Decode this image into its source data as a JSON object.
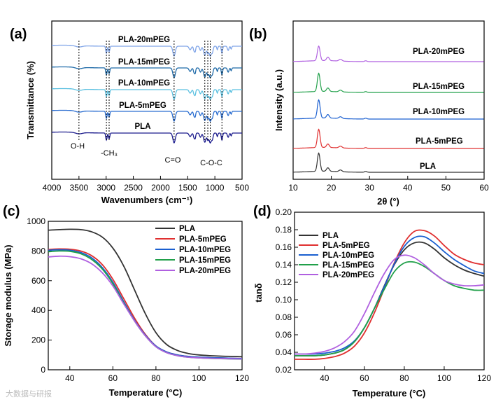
{
  "watermark": "大数据与研报",
  "chart_data": [
    {
      "panel": "(a)",
      "type": "line",
      "title": "",
      "xlabel": "Wavenumbers (cm⁻¹)",
      "ylabel": "Transmittance (%)",
      "xlim": [
        4000,
        500
      ],
      "xticks": [
        "4000",
        "3500",
        "3000",
        "2500",
        "2000",
        "1500",
        "1000",
        "500"
      ],
      "band_wavenumbers": [
        3500,
        2995,
        2945,
        1750,
        1185,
        1130,
        1085,
        870
      ],
      "annotations": [
        "O-H",
        "-CH₃",
        "C=O",
        "C-O-C"
      ],
      "series": [
        {
          "name": "PLA",
          "color": "#1a1a8c",
          "offset": 0
        },
        {
          "name": "PLA-5mPEG",
          "color": "#2a6dd0",
          "offset": 1
        },
        {
          "name": "PLA-10mPEG",
          "color": "#5bc0e0",
          "offset": 2
        },
        {
          "name": "PLA-15mPEG",
          "color": "#1e6aa8",
          "offset": 3
        },
        {
          "name": "PLA-20mPEG",
          "color": "#7fa4e8",
          "offset": 4
        }
      ]
    },
    {
      "panel": "(b)",
      "type": "line",
      "xlabel": "2θ (°)",
      "ylabel": "Intensity (a.u.)",
      "xlim": [
        10,
        60
      ],
      "xticks": [
        "10",
        "20",
        "30",
        "40",
        "50",
        "60"
      ],
      "peaks_2theta": [
        16.7,
        19.1,
        22.4
      ],
      "series": [
        {
          "name": "PLA",
          "color": "#333333",
          "peak_height": 1.0
        },
        {
          "name": "PLA-5mPEG",
          "color": "#e03030",
          "peak_height": 1.0
        },
        {
          "name": "PLA-10mPEG",
          "color": "#1a5fd0",
          "peak_height": 1.0
        },
        {
          "name": "PLA-15mPEG",
          "color": "#21a04a",
          "peak_height": 1.0
        },
        {
          "name": "PLA-20mPEG",
          "color": "#b060e0",
          "peak_height": 0.8
        }
      ]
    },
    {
      "panel": "(c)",
      "type": "line",
      "xlabel": "Temperature (°C)",
      "ylabel": "Storage modulus (MPa)",
      "xlim": [
        30,
        120
      ],
      "ylim": [
        0,
        1000
      ],
      "xticks": [
        "40",
        "60",
        "80",
        "100",
        "120"
      ],
      "yticks": [
        "0",
        "200",
        "400",
        "600",
        "800",
        "1000"
      ],
      "legend": [
        "PLA",
        "PLA-5mPEG",
        "PLA-10mPEG",
        "PLA-15mPEG",
        "PLA-20mPEG"
      ],
      "series": [
        {
          "name": "PLA",
          "color": "#333333",
          "x": [
            30,
            35,
            40,
            45,
            50,
            55,
            60,
            65,
            70,
            75,
            80,
            85,
            90,
            95,
            100,
            105,
            110,
            115,
            120
          ],
          "values": [
            940,
            944,
            946,
            944,
            930,
            895,
            820,
            700,
            540,
            380,
            250,
            170,
            130,
            110,
            100,
            95,
            92,
            90,
            88
          ]
        },
        {
          "name": "PLA-5mPEG",
          "color": "#e03030",
          "x": [
            30,
            35,
            40,
            45,
            50,
            55,
            60,
            65,
            70,
            75,
            80,
            85,
            90,
            95,
            100,
            105,
            110,
            115,
            120
          ],
          "values": [
            810,
            814,
            812,
            800,
            770,
            710,
            610,
            480,
            350,
            240,
            160,
            120,
            100,
            90,
            85,
            82,
            80,
            78,
            76
          ]
        },
        {
          "name": "PLA-10mPEG",
          "color": "#1a5fd0",
          "x": [
            30,
            35,
            40,
            45,
            50,
            55,
            60,
            65,
            70,
            75,
            80,
            85,
            90,
            95,
            100,
            105,
            110,
            115,
            120
          ],
          "values": [
            805,
            808,
            805,
            790,
            755,
            690,
            590,
            460,
            335,
            235,
            160,
            120,
            100,
            90,
            85,
            82,
            80,
            78,
            76
          ]
        },
        {
          "name": "PLA-15mPEG",
          "color": "#21a04a",
          "x": [
            30,
            35,
            40,
            45,
            50,
            55,
            60,
            65,
            70,
            75,
            80,
            85,
            90,
            95,
            100,
            105,
            110,
            115,
            120
          ],
          "values": [
            795,
            800,
            798,
            782,
            745,
            680,
            580,
            450,
            330,
            230,
            155,
            115,
            95,
            85,
            80,
            77,
            75,
            73,
            72
          ]
        },
        {
          "name": "PLA-20mPEG",
          "color": "#b060e0",
          "x": [
            30,
            35,
            40,
            45,
            50,
            55,
            60,
            65,
            70,
            75,
            80,
            85,
            90,
            95,
            100,
            105,
            110,
            115,
            120
          ],
          "values": [
            760,
            765,
            762,
            748,
            715,
            655,
            565,
            445,
            330,
            230,
            155,
            115,
            95,
            85,
            80,
            78,
            76,
            74,
            73
          ]
        }
      ]
    },
    {
      "panel": "(d)",
      "type": "line",
      "xlabel": "Temperature (°C)",
      "ylabel": "tanδ",
      "xlim": [
        25,
        120
      ],
      "ylim": [
        0.02,
        0.2
      ],
      "xticks": [
        "40",
        "60",
        "80",
        "100",
        "120"
      ],
      "yticks": [
        "0.02",
        "0.04",
        "0.06",
        "0.08",
        "0.10",
        "0.12",
        "0.14",
        "0.16",
        "0.18",
        "0.20"
      ],
      "legend": [
        "PLA",
        "PLA-5mPEG",
        "PLA-10mPEG",
        "PLA-15mPEG",
        "PLA-20mPEG"
      ],
      "series": [
        {
          "name": "PLA",
          "color": "#333333",
          "x": [
            25,
            30,
            35,
            40,
            45,
            50,
            55,
            60,
            65,
            70,
            75,
            80,
            85,
            90,
            95,
            100,
            105,
            110,
            115,
            120
          ],
          "values": [
            0.036,
            0.036,
            0.036,
            0.037,
            0.039,
            0.043,
            0.052,
            0.068,
            0.09,
            0.116,
            0.14,
            0.157,
            0.165,
            0.165,
            0.158,
            0.148,
            0.14,
            0.134,
            0.13,
            0.127
          ]
        },
        {
          "name": "PLA-5mPEG",
          "color": "#e03030",
          "x": [
            25,
            30,
            35,
            40,
            45,
            50,
            55,
            60,
            65,
            70,
            75,
            80,
            85,
            90,
            95,
            100,
            105,
            110,
            115,
            120
          ],
          "values": [
            0.032,
            0.032,
            0.032,
            0.033,
            0.035,
            0.039,
            0.047,
            0.062,
            0.085,
            0.113,
            0.142,
            0.165,
            0.178,
            0.179,
            0.173,
            0.162,
            0.152,
            0.146,
            0.142,
            0.14
          ]
        },
        {
          "name": "PLA-10mPEG",
          "color": "#1a5fd0",
          "x": [
            25,
            30,
            35,
            40,
            45,
            50,
            55,
            60,
            65,
            70,
            75,
            80,
            85,
            90,
            95,
            100,
            105,
            110,
            115,
            120
          ],
          "values": [
            0.038,
            0.038,
            0.038,
            0.039,
            0.041,
            0.045,
            0.053,
            0.068,
            0.09,
            0.115,
            0.141,
            0.161,
            0.171,
            0.172,
            0.165,
            0.155,
            0.146,
            0.139,
            0.133,
            0.13
          ]
        },
        {
          "name": "PLA-15mPEG",
          "color": "#21a04a",
          "x": [
            25,
            30,
            35,
            40,
            45,
            50,
            55,
            60,
            65,
            70,
            75,
            80,
            85,
            90,
            95,
            100,
            105,
            110,
            115,
            120
          ],
          "values": [
            0.036,
            0.036,
            0.036,
            0.037,
            0.039,
            0.043,
            0.052,
            0.068,
            0.09,
            0.112,
            0.132,
            0.142,
            0.143,
            0.138,
            0.13,
            0.122,
            0.116,
            0.113,
            0.111,
            0.111
          ]
        },
        {
          "name": "PLA-20mPEG",
          "color": "#b060e0",
          "x": [
            25,
            30,
            35,
            40,
            45,
            50,
            55,
            60,
            65,
            70,
            75,
            80,
            85,
            90,
            95,
            100,
            105,
            110,
            115,
            120
          ],
          "values": [
            0.038,
            0.038,
            0.039,
            0.041,
            0.045,
            0.052,
            0.064,
            0.084,
            0.108,
            0.13,
            0.146,
            0.151,
            0.148,
            0.14,
            0.13,
            0.122,
            0.118,
            0.116,
            0.116,
            0.117
          ]
        }
      ]
    }
  ]
}
